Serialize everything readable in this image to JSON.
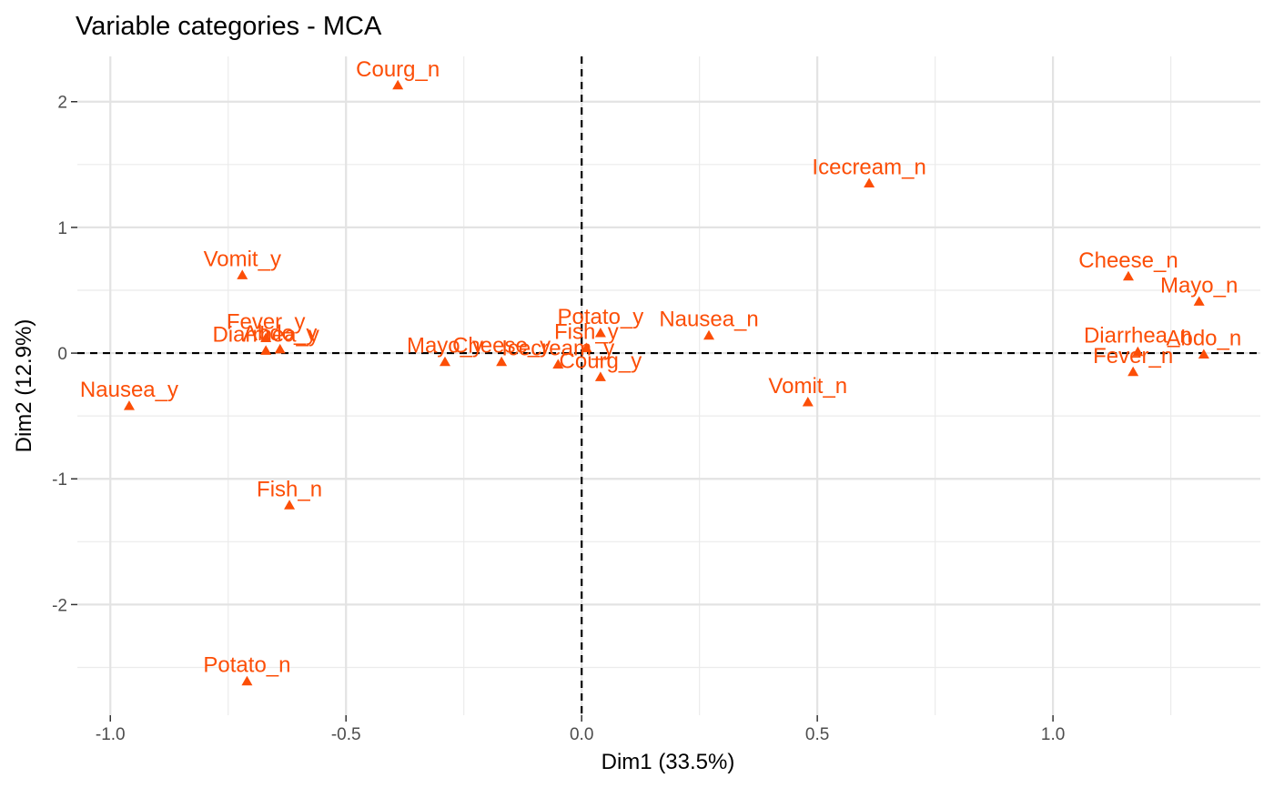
{
  "chart_data": {
    "type": "scatter",
    "title": "Variable categories - MCA",
    "xlabel": "Dim1 (33.5%)",
    "ylabel": "Dim2 (12.9%)",
    "xlim": [
      -1.07,
      1.44
    ],
    "ylim": [
      -2.88,
      2.36
    ],
    "x_ticks": [
      -1.0,
      -0.5,
      0.0,
      0.5,
      1.0
    ],
    "x_tick_labels": [
      "-1.0",
      "-0.5",
      "0.0",
      "0.5",
      "1.0"
    ],
    "y_ticks": [
      -2,
      -1,
      0,
      1,
      2
    ],
    "y_tick_labels": [
      "-2",
      "-1",
      "0",
      "1",
      "2"
    ],
    "reference_lines": {
      "x": 0,
      "y": 0,
      "style": "dashed"
    },
    "grid": true,
    "marker": "triangle",
    "color": "#fc4e07",
    "points": [
      {
        "label": "Courg_n",
        "x": -0.39,
        "y": 2.13
      },
      {
        "label": "Icecream_n",
        "x": 0.61,
        "y": 1.35
      },
      {
        "label": "Vomit_y",
        "x": -0.72,
        "y": 0.62
      },
      {
        "label": "Cheese_n",
        "x": 1.16,
        "y": 0.61
      },
      {
        "label": "Mayo_n",
        "x": 1.31,
        "y": 0.41
      },
      {
        "label": "Fever_y",
        "x": -0.67,
        "y": 0.12
      },
      {
        "label": "Abdo_y",
        "x": -0.64,
        "y": 0.03
      },
      {
        "label": "Diarrhea_y",
        "x": -0.67,
        "y": 0.02
      },
      {
        "label": "Potato_y",
        "x": 0.04,
        "y": 0.16
      },
      {
        "label": "Nausea_n",
        "x": 0.27,
        "y": 0.14
      },
      {
        "label": "Fish_y",
        "x": 0.01,
        "y": 0.04
      },
      {
        "label": "Mayo_y",
        "x": -0.29,
        "y": -0.07
      },
      {
        "label": "Cheese_y",
        "x": -0.17,
        "y": -0.07
      },
      {
        "label": "Icecream_y",
        "x": -0.05,
        "y": -0.09
      },
      {
        "label": "Courg_y",
        "x": 0.04,
        "y": -0.19
      },
      {
        "label": "Diarrhea_n",
        "x": 1.18,
        "y": 0.01
      },
      {
        "label": "Abdo_n",
        "x": 1.32,
        "y": -0.01
      },
      {
        "label": "Fever_n",
        "x": 1.17,
        "y": -0.15
      },
      {
        "label": "Vomit_n",
        "x": 0.48,
        "y": -0.39
      },
      {
        "label": "Nausea_y",
        "x": -0.96,
        "y": -0.42
      },
      {
        "label": "Fish_n",
        "x": -0.62,
        "y": -1.21
      },
      {
        "label": "Potato_n",
        "x": -0.71,
        "y": -2.61
      }
    ]
  }
}
